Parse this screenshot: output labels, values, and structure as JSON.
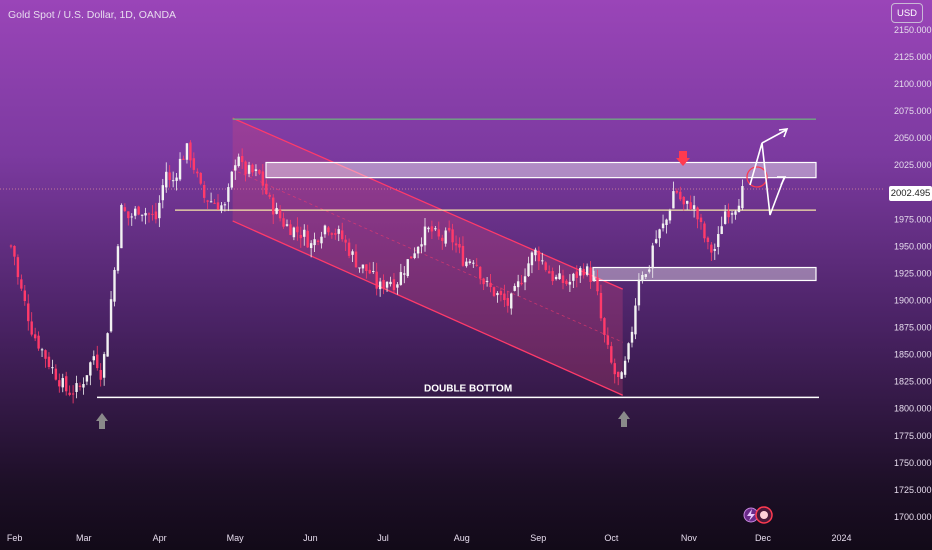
{
  "title": "Gold Spot / U.S. Dollar, 1D, OANDA",
  "currency_label": "USD",
  "current_price": "2002.495",
  "colors": {
    "up": "#f2f2f2",
    "down": "#ff3a6a",
    "channel_fill": "#d4457a",
    "resistance_line": "#6fa882",
    "support_line": "#f7e7a8",
    "arrow": "#8a8a8a"
  },
  "chart_data": {
    "type": "candlestick",
    "y_axis": {
      "range": [
        1700,
        2160
      ],
      "ticks": [
        "2150.000",
        "2125.000",
        "2100.000",
        "2075.000",
        "2050.000",
        "2025.000",
        "1975.000",
        "1950.000",
        "1925.000",
        "1900.000",
        "1875.000",
        "1850.000",
        "1825.000",
        "1800.000",
        "1775.000",
        "1750.000",
        "1725.000",
        "1700.000"
      ]
    },
    "x_axis": {
      "labels": [
        "Feb",
        "Mar",
        "Apr",
        "May",
        "Jun",
        "Jul",
        "Aug",
        "Sep",
        "Oct",
        "Nov",
        "Dec",
        "2024"
      ]
    },
    "annotations": {
      "double_bottom_label": "DOUBLE BOTTOM",
      "double_bottom_level": 1810,
      "resistance_level": 2067,
      "support_level": 1983,
      "supply_zone": [
        2013,
        2027
      ],
      "demand_zone": [
        1918,
        1930
      ]
    },
    "close_path": [
      [
        "2023-02-01",
        1950
      ],
      [
        "2023-02-03",
        1920
      ],
      [
        "2023-02-09",
        1870
      ],
      [
        "2023-02-16",
        1840
      ],
      [
        "2023-02-23",
        1815
      ],
      [
        "2023-02-28",
        1818
      ],
      [
        "2023-03-06",
        1850
      ],
      [
        "2023-03-09",
        1830
      ],
      [
        "2023-03-13",
        1905
      ],
      [
        "2023-03-17",
        1985
      ],
      [
        "2023-03-20",
        1975
      ],
      [
        "2023-03-24",
        1985
      ],
      [
        "2023-03-31",
        1975
      ],
      [
        "2023-04-04",
        2020
      ],
      [
        "2023-04-06",
        2005
      ],
      [
        "2023-04-10",
        2030
      ],
      [
        "2023-04-13",
        2040
      ],
      [
        "2023-04-19",
        1995
      ],
      [
        "2023-04-24",
        1990
      ],
      [
        "2023-04-28",
        1985
      ],
      [
        "2023-05-03",
        2040
      ],
      [
        "2023-05-05",
        2020
      ],
      [
        "2023-05-12",
        2015
      ],
      [
        "2023-05-16",
        1990
      ],
      [
        "2023-05-22",
        1970
      ],
      [
        "2023-05-30",
        1960
      ],
      [
        "2023-06-02",
        1950
      ],
      [
        "2023-06-05",
        1962
      ],
      [
        "2023-06-08",
        1970
      ],
      [
        "2023-06-14",
        1958
      ],
      [
        "2023-06-21",
        1932
      ],
      [
        "2023-06-26",
        1925
      ],
      [
        "2023-06-29",
        1910
      ],
      [
        "2023-07-03",
        1920
      ],
      [
        "2023-07-06",
        1915
      ],
      [
        "2023-07-12",
        1940
      ],
      [
        "2023-07-17",
        1960
      ],
      [
        "2023-07-20",
        1965
      ],
      [
        "2023-07-24",
        1955
      ],
      [
        "2023-07-28",
        1960
      ],
      [
        "2023-08-03",
        1935
      ],
      [
        "2023-08-07",
        1940
      ],
      [
        "2023-08-11",
        1915
      ],
      [
        "2023-08-21",
        1895
      ],
      [
        "2023-08-25",
        1915
      ],
      [
        "2023-08-30",
        1940
      ],
      [
        "2023-09-01",
        1945
      ],
      [
        "2023-09-05",
        1930
      ],
      [
        "2023-09-08",
        1920
      ],
      [
        "2023-09-14",
        1915
      ],
      [
        "2023-09-20",
        1930
      ],
      [
        "2023-09-22",
        1925
      ],
      [
        "2023-09-25",
        1915
      ],
      [
        "2023-09-28",
        1870
      ],
      [
        "2023-10-02",
        1835
      ],
      [
        "2023-10-05",
        1822
      ],
      [
        "2023-10-06",
        1830
      ],
      [
        "2023-10-09",
        1860
      ],
      [
        "2023-10-13",
        1930
      ],
      [
        "2023-10-16",
        1920
      ],
      [
        "2023-10-18",
        1950
      ],
      [
        "2023-10-24",
        1975
      ],
      [
        "2023-10-27",
        2005
      ],
      [
        "2023-10-31",
        1985
      ],
      [
        "2023-11-03",
        1990
      ],
      [
        "2023-11-07",
        1965
      ],
      [
        "2023-11-10",
        1945
      ],
      [
        "2023-11-13",
        1948
      ],
      [
        "2023-11-16",
        1982
      ],
      [
        "2023-11-20",
        1985
      ],
      [
        "2023-11-24",
        2002
      ]
    ]
  }
}
